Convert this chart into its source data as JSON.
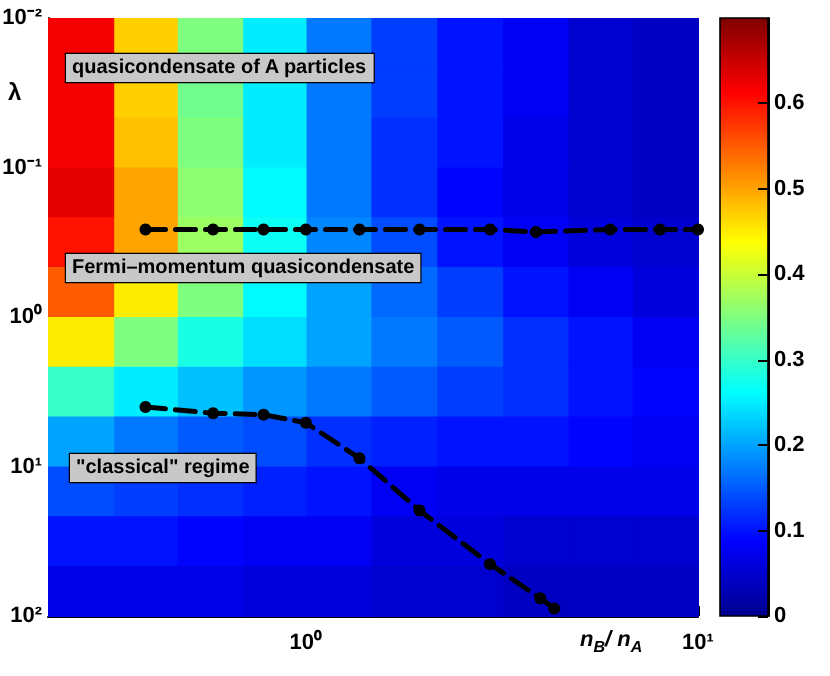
{
  "chart_data": {
    "type": "heatmap",
    "xlabel": "n$_{B}$/ n$_{A}$",
    "ylabel": "λ",
    "x": [
      0.27,
      0.39,
      0.57,
      0.84,
      1.2,
      1.8,
      2.6,
      3.9,
      5.6,
      8.3
    ],
    "y": [
      0.0147,
      0.0316,
      0.068,
      0.147,
      0.316,
      0.68,
      1.47,
      3.16,
      6.8,
      14.7,
      31.6,
      68
    ],
    "xlim": [
      0.22,
      10
    ],
    "xticks": [
      {
        "value": 1,
        "label": "10⁰"
      },
      {
        "value": 10,
        "label": "10¹"
      }
    ],
    "ylim": [
      100,
      0.01
    ],
    "yticks": [
      {
        "value": 0.01,
        "label": "10⁻²"
      },
      {
        "value": 0.1,
        "label": "10⁻¹"
      },
      {
        "value": 1,
        "label": "10⁰"
      },
      {
        "value": 10,
        "label": "10¹"
      },
      {
        "value": 100,
        "label": "10²"
      }
    ],
    "log": "xy",
    "cells": [
      [
        0.62,
        0.47,
        0.35,
        0.25,
        0.17,
        0.13,
        0.1,
        0.08,
        0.05,
        0.04
      ],
      [
        0.62,
        0.47,
        0.34,
        0.25,
        0.17,
        0.13,
        0.1,
        0.08,
        0.05,
        0.04
      ],
      [
        0.62,
        0.48,
        0.35,
        0.25,
        0.17,
        0.12,
        0.1,
        0.07,
        0.05,
        0.04
      ],
      [
        0.63,
        0.5,
        0.36,
        0.26,
        0.17,
        0.12,
        0.09,
        0.07,
        0.05,
        0.04
      ],
      [
        0.6,
        0.5,
        0.37,
        0.27,
        0.18,
        0.14,
        0.1,
        0.08,
        0.06,
        0.05
      ],
      [
        0.55,
        0.45,
        0.35,
        0.26,
        0.2,
        0.16,
        0.13,
        0.1,
        0.08,
        0.06
      ],
      [
        0.45,
        0.35,
        0.28,
        0.24,
        0.2,
        0.17,
        0.15,
        0.12,
        0.1,
        0.08
      ],
      [
        0.3,
        0.25,
        0.22,
        0.19,
        0.17,
        0.15,
        0.13,
        0.12,
        0.1,
        0.09
      ],
      [
        0.2,
        0.17,
        0.15,
        0.14,
        0.12,
        0.11,
        0.1,
        0.1,
        0.09,
        0.08
      ],
      [
        0.14,
        0.13,
        0.12,
        0.11,
        0.1,
        0.08,
        0.07,
        0.07,
        0.07,
        0.07
      ],
      [
        0.1,
        0.1,
        0.09,
        0.08,
        0.08,
        0.06,
        0.06,
        0.05,
        0.05,
        0.05
      ],
      [
        0.07,
        0.07,
        0.07,
        0.06,
        0.06,
        0.05,
        0.05,
        0.04,
        0.04,
        0.04
      ]
    ],
    "clim": [
      0,
      0.7
    ],
    "cticks": [
      0,
      0.1,
      0.2,
      0.3,
      0.4,
      0.5,
      0.6
    ],
    "series": [
      {
        "type": "line",
        "color": "#000000",
        "x": [
          0.39,
          0.58,
          0.78,
          1.0,
          1.37,
          1.95,
          2.95,
          3.86,
          5.97,
          8.0,
          10
        ],
        "values": [
          0.26,
          0.26,
          0.26,
          0.26,
          0.26,
          0.26,
          0.26,
          0.27,
          0.26,
          0.26,
          0.26
        ]
      },
      {
        "type": "line",
        "color": "#000000",
        "x": [
          0.39,
          0.58,
          0.78,
          1.0,
          1.37,
          1.95,
          2.95,
          3.96,
          4.3
        ],
        "values": [
          4.0,
          4.4,
          4.5,
          5.1,
          8.8,
          19.7,
          45,
          76,
          89
        ]
      }
    ],
    "marker": "circle",
    "line_style": "dashed",
    "annotations": [
      "quasicondensate of A particles",
      "Fermi–momentum quasicondensate",
      "\"classical\" regime"
    ]
  }
}
